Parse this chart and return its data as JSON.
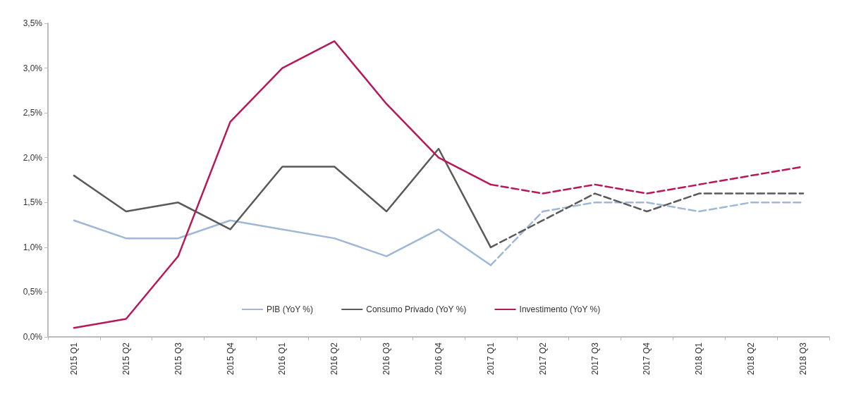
{
  "chart_data": {
    "type": "line",
    "categories": [
      "2015 Q1",
      "2015 Q2",
      "2015 Q3",
      "2015 Q4",
      "2016 Q1",
      "2016 Q2",
      "2016 Q3",
      "2016 Q4",
      "2017 Q1",
      "2017 Q2",
      "2017 Q3",
      "2017 Q4",
      "2018 Q1",
      "2018 Q2",
      "2018 Q3"
    ],
    "series": [
      {
        "name": "PIB (YoY %)",
        "color": "#9fb8d6",
        "line_style": "solid",
        "values": [
          1.3,
          1.1,
          1.1,
          1.3,
          1.2,
          1.1,
          0.9,
          1.2,
          0.8,
          null,
          null,
          null,
          null,
          null,
          null
        ]
      },
      {
        "name": "Consumo Privado (YoY %)",
        "color": "#5a5a5a",
        "line_style": "solid",
        "values": [
          1.8,
          1.4,
          1.5,
          1.2,
          1.9,
          1.9,
          1.4,
          2.1,
          1.0,
          null,
          null,
          null,
          null,
          null,
          null
        ]
      },
      {
        "name": "Investimento (YoY %)",
        "color": "#b8175a",
        "line_style": "solid",
        "values": [
          0.1,
          0.2,
          0.9,
          2.4,
          3.0,
          3.3,
          2.6,
          2.0,
          1.7,
          null,
          null,
          null,
          null,
          null,
          null
        ]
      },
      {
        "color": "#9fb8d6",
        "line_style": "dashed",
        "values": [
          null,
          null,
          null,
          null,
          null,
          null,
          null,
          null,
          0.8,
          1.4,
          1.5,
          1.5,
          1.4,
          1.5,
          1.5
        ]
      },
      {
        "color": "#5a5a5a",
        "line_style": "dashed",
        "values": [
          null,
          null,
          null,
          null,
          null,
          null,
          null,
          null,
          1.0,
          1.3,
          1.6,
          1.4,
          1.6,
          1.6,
          1.6
        ]
      },
      {
        "color": "#b8175a",
        "line_style": "dashed",
        "values": [
          null,
          null,
          null,
          null,
          null,
          null,
          null,
          null,
          1.7,
          1.6,
          1.7,
          1.6,
          1.7,
          1.8,
          1.9
        ]
      }
    ],
    "ylim": [
      0,
      3.5
    ],
    "yticks": [
      {
        "value": 0,
        "label": "0,0%"
      },
      {
        "value": 0.5,
        "label": "0,5%"
      },
      {
        "value": 1,
        "label": "1,0%"
      },
      {
        "value": 1.5,
        "label": "1,5%"
      },
      {
        "value": 2,
        "label": "2,0%"
      },
      {
        "value": 2.5,
        "label": "2,5%"
      },
      {
        "value": 3,
        "label": "3,0%"
      },
      {
        "value": 3.5,
        "label": "3,5%"
      }
    ],
    "grid": false,
    "legend": "bottom",
    "marker": "none"
  }
}
